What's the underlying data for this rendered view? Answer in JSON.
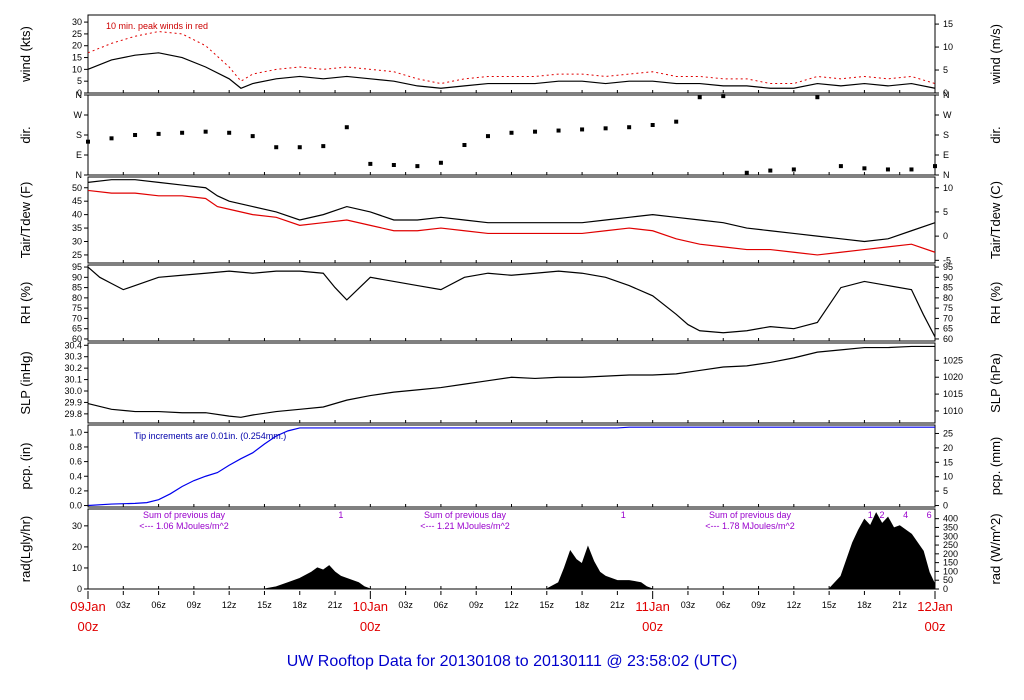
{
  "title": "UW Rooftop Data for 20130108  to  20130111 @ 23:58:02  (UTC)",
  "x_axis": {
    "hour_ticks": [
      "03z",
      "06z",
      "09z",
      "12z",
      "15z",
      "18z",
      "21z",
      "03z",
      "06z",
      "09z",
      "12z",
      "15z",
      "18z",
      "21z",
      "03z",
      "06z",
      "09z",
      "12z",
      "15z",
      "18z",
      "21z"
    ],
    "day_labels": [
      {
        "date": "09Jan",
        "hour": "00z"
      },
      {
        "date": "10Jan",
        "hour": "00z"
      },
      {
        "date": "11Jan",
        "hour": "00z"
      },
      {
        "date": "12Jan",
        "hour": "00z"
      }
    ]
  },
  "colors": {
    "primary": "#000000",
    "dew": "#e00000",
    "pcp": "#0000ee",
    "peak": "#e00000",
    "note_red": "#cc0000",
    "note_blue": "#0000aa",
    "note_purple": "#9900cc"
  },
  "chart_data": [
    {
      "id": "wind",
      "type": "line",
      "ylabel_left": "wind (kts)",
      "ylabel_right": "wind (m/s)",
      "ylim": [
        0,
        33
      ],
      "left_ticks": [
        0,
        5,
        10,
        15,
        20,
        25,
        30
      ],
      "right_ticks": [
        0,
        5,
        10,
        15
      ],
      "right_scale": 1.944,
      "annotation": "10 min. peak winds in red",
      "series": [
        {
          "name": "wind",
          "color": "#000000",
          "x": [
            0,
            2,
            4,
            6,
            8,
            10,
            12,
            13,
            14,
            16,
            18,
            20,
            22,
            24,
            26,
            28,
            30,
            32,
            34,
            36,
            38,
            40,
            42,
            44,
            46,
            48,
            50,
            52,
            54,
            56,
            58,
            60,
            62,
            64,
            66,
            68,
            70,
            72
          ],
          "y": [
            10,
            14,
            16,
            17,
            15,
            11,
            6,
            2,
            4,
            6,
            7,
            6,
            7,
            6,
            5,
            3,
            2,
            3,
            4,
            4,
            4,
            5,
            5,
            4,
            5,
            5,
            4,
            4,
            3,
            3,
            2,
            2,
            4,
            3,
            4,
            3,
            4,
            2
          ]
        },
        {
          "name": "peak",
          "color": "#e00000",
          "x": [
            0,
            2,
            4,
            6,
            8,
            10,
            12,
            13,
            14,
            16,
            18,
            20,
            22,
            24,
            26,
            28,
            30,
            32,
            34,
            36,
            38,
            40,
            42,
            44,
            46,
            48,
            50,
            52,
            54,
            56,
            58,
            60,
            62,
            64,
            66,
            68,
            70,
            72
          ],
          "y": [
            17,
            21,
            24,
            26,
            25,
            20,
            11,
            5,
            8,
            10,
            11,
            10,
            11,
            10,
            9,
            6,
            4,
            6,
            7,
            7,
            7,
            8,
            8,
            7,
            8,
            9,
            7,
            7,
            6,
            6,
            4,
            4,
            7,
            6,
            7,
            6,
            7,
            4
          ]
        }
      ]
    },
    {
      "id": "dir",
      "type": "scatter",
      "ylabel_left": "dir.",
      "ylabel_right": "dir.",
      "ylim": [
        0,
        360
      ],
      "cat_ticks": [
        "N",
        "E",
        "S",
        "W",
        "N"
      ],
      "series": [
        {
          "name": "dir",
          "color": "#000000",
          "x": [
            0,
            2,
            4,
            6,
            8,
            10,
            12,
            14,
            16,
            18,
            20,
            22,
            24,
            26,
            28,
            30,
            32,
            34,
            36,
            38,
            40,
            42,
            44,
            46,
            48,
            50,
            52,
            54,
            56,
            58,
            60,
            62,
            64,
            66,
            68,
            70,
            72
          ],
          "y": [
            150,
            165,
            180,
            185,
            190,
            195,
            190,
            175,
            125,
            125,
            130,
            215,
            50,
            45,
            40,
            55,
            135,
            175,
            190,
            195,
            200,
            205,
            210,
            215,
            225,
            240,
            350,
            355,
            10,
            20,
            25,
            350,
            40,
            30,
            25,
            25,
            40
          ]
        }
      ]
    },
    {
      "id": "temp",
      "type": "line",
      "ylabel_left": "Tair/Tdew (F)",
      "ylabel_right": "Tair/Tdew (C)",
      "ylim": [
        22,
        54
      ],
      "left_ticks": [
        25,
        30,
        35,
        40,
        45,
        50
      ],
      "right_ticks": [
        -5,
        0,
        5,
        10
      ],
      "series": [
        {
          "name": "Tair",
          "color": "#000000",
          "x": [
            0,
            2,
            4,
            6,
            8,
            10,
            11,
            12,
            14,
            16,
            18,
            20,
            22,
            24,
            26,
            28,
            30,
            32,
            34,
            36,
            38,
            40,
            42,
            44,
            46,
            48,
            50,
            52,
            54,
            56,
            58,
            60,
            62,
            64,
            66,
            68,
            70,
            72
          ],
          "y": [
            52,
            53,
            53,
            52,
            51,
            50,
            47,
            45,
            43,
            41,
            38,
            40,
            43,
            41,
            38,
            38,
            39,
            38,
            37,
            37,
            37,
            37,
            37,
            38,
            39,
            40,
            39,
            38,
            37,
            35,
            34,
            33,
            32,
            31,
            30,
            31,
            34,
            37
          ]
        },
        {
          "name": "Tdew",
          "color": "#e00000",
          "x": [
            0,
            2,
            4,
            6,
            8,
            10,
            11,
            12,
            14,
            16,
            18,
            20,
            22,
            24,
            26,
            28,
            30,
            32,
            34,
            36,
            38,
            40,
            42,
            44,
            46,
            48,
            50,
            52,
            54,
            56,
            58,
            60,
            62,
            64,
            66,
            68,
            70,
            72
          ],
          "y": [
            49,
            48,
            48,
            47,
            47,
            46,
            43,
            42,
            40,
            39,
            36,
            37,
            38,
            36,
            34,
            34,
            35,
            34,
            33,
            33,
            33,
            33,
            33,
            34,
            35,
            34,
            31,
            29,
            28,
            27,
            27,
            26,
            25,
            26,
            27,
            28,
            29,
            26
          ]
        }
      ]
    },
    {
      "id": "rh",
      "type": "line",
      "ylabel_left": "RH (%)",
      "ylabel_right": "RH (%)",
      "ylim": [
        59,
        96
      ],
      "left_ticks": [
        60,
        65,
        70,
        75,
        80,
        85,
        90,
        95
      ],
      "right_ticks": [
        60,
        65,
        70,
        75,
        80,
        85,
        90,
        95
      ],
      "series": [
        {
          "name": "RH",
          "color": "#000000",
          "x": [
            0,
            1,
            2,
            3,
            4,
            6,
            8,
            10,
            12,
            14,
            16,
            18,
            20,
            21,
            22,
            24,
            26,
            28,
            30,
            32,
            34,
            36,
            38,
            40,
            42,
            44,
            46,
            48,
            50,
            51,
            52,
            54,
            56,
            58,
            60,
            62,
            64,
            66,
            68,
            70,
            71,
            72
          ],
          "y": [
            95,
            90,
            87,
            84,
            86,
            90,
            91,
            92,
            93,
            92,
            93,
            93,
            92,
            85,
            79,
            90,
            88,
            86,
            84,
            90,
            92,
            91,
            92,
            93,
            92,
            90,
            86,
            81,
            72,
            67,
            64,
            63,
            64,
            66,
            65,
            68,
            85,
            88,
            86,
            84,
            72,
            61
          ]
        }
      ]
    },
    {
      "id": "slp",
      "type": "line",
      "ylabel_left": "SLP (inHg)",
      "ylabel_right": "SLP (hPa)",
      "ylim": [
        29.72,
        30.42
      ],
      "left_ticks": [
        29.8,
        29.9,
        30.0,
        30.1,
        30.2,
        30.3,
        30.4
      ],
      "right_ticks": [
        1010,
        1015,
        1020,
        1025
      ],
      "series": [
        {
          "name": "SLP",
          "color": "#000000",
          "x": [
            0,
            2,
            4,
            6,
            8,
            10,
            12,
            13,
            14,
            16,
            18,
            20,
            22,
            24,
            26,
            28,
            30,
            32,
            34,
            36,
            38,
            40,
            42,
            44,
            46,
            48,
            50,
            52,
            54,
            56,
            58,
            60,
            62,
            64,
            66,
            68,
            70,
            72
          ],
          "y": [
            29.89,
            29.84,
            29.82,
            29.82,
            29.81,
            29.81,
            29.78,
            29.77,
            29.79,
            29.82,
            29.84,
            29.86,
            29.92,
            29.96,
            29.99,
            30.01,
            30.03,
            30.06,
            30.09,
            30.12,
            30.11,
            30.12,
            30.12,
            30.13,
            30.14,
            30.14,
            30.15,
            30.18,
            30.21,
            30.22,
            30.25,
            30.29,
            30.34,
            30.36,
            30.38,
            30.38,
            30.39,
            30.39
          ]
        }
      ]
    },
    {
      "id": "pcp",
      "type": "line",
      "ylabel_left": "pcp. (in)",
      "ylabel_right": "pcp. (mm)",
      "ylim": [
        -0.02,
        1.1
      ],
      "left_ticks": [
        0.0,
        0.2,
        0.4,
        0.6,
        0.8,
        1.0
      ],
      "right_ticks": [
        0,
        5,
        10,
        15,
        20,
        25
      ],
      "annotation": "Tip increments are 0.01in. (0.254mm.)",
      "series": [
        {
          "name": "pcp",
          "color": "#0000ee",
          "x": [
            0,
            2,
            4,
            5,
            6,
            7,
            8,
            9,
            10,
            11,
            12,
            13,
            14,
            15,
            16,
            17,
            18,
            19,
            20,
            40,
            45,
            46,
            72
          ],
          "y": [
            0.0,
            0.02,
            0.03,
            0.04,
            0.08,
            0.16,
            0.26,
            0.34,
            0.4,
            0.45,
            0.55,
            0.64,
            0.72,
            0.84,
            0.95,
            1.02,
            1.06,
            1.06,
            1.06,
            1.06,
            1.06,
            1.07,
            1.07
          ]
        }
      ]
    },
    {
      "id": "rad",
      "type": "area",
      "ylabel_left": "rad(Lgly/hr)",
      "ylabel_right": "rad (W/m^2)",
      "ylim": [
        0,
        38
      ],
      "left_ticks": [
        0,
        10,
        20,
        30
      ],
      "right_ticks": [
        0,
        50,
        100,
        150,
        200,
        250,
        300,
        350,
        400
      ],
      "notes": [
        {
          "line1": "Sum of previous day",
          "line2": "<--- 1.06 MJoules/m^2"
        },
        {
          "line1": "Sum of previous day",
          "line2": "<--- 1.21 MJoules/m^2"
        },
        {
          "line1": "Sum of previous day",
          "line2": "<--- 1.78 MJoules/m^2"
        }
      ],
      "markers": [
        {
          "label": "1",
          "x": 21.5
        },
        {
          "label": "1",
          "x": 45.5
        },
        {
          "label": "1",
          "x": 66.5
        },
        {
          "label": "2",
          "x": 67.5
        },
        {
          "label": "4",
          "x": 69.5
        },
        {
          "label": "6",
          "x": 71.5
        }
      ],
      "series": [
        {
          "name": "rad",
          "color": "#000000",
          "x": [
            0,
            15,
            16,
            17,
            18,
            19,
            19.5,
            20,
            20.5,
            21,
            21.5,
            22,
            23,
            23.5,
            24,
            39,
            40,
            40.5,
            41,
            41.5,
            42,
            42.5,
            43,
            43.5,
            44,
            45,
            46,
            47,
            47.5,
            48,
            63,
            64,
            64.5,
            65,
            65.5,
            66,
            66.5,
            67,
            67.5,
            68,
            68.5,
            69,
            70,
            71,
            71.5,
            72
          ],
          "y": [
            0,
            0,
            1,
            3,
            5,
            8,
            10,
            9,
            11,
            8,
            6,
            5,
            3,
            1,
            0,
            0,
            3,
            10,
            18,
            14,
            12,
            20,
            13,
            8,
            6,
            4,
            4,
            3,
            1,
            0,
            0,
            6,
            14,
            22,
            28,
            33,
            30,
            36,
            31,
            34,
            29,
            30,
            26,
            18,
            8,
            2
          ]
        }
      ]
    }
  ]
}
